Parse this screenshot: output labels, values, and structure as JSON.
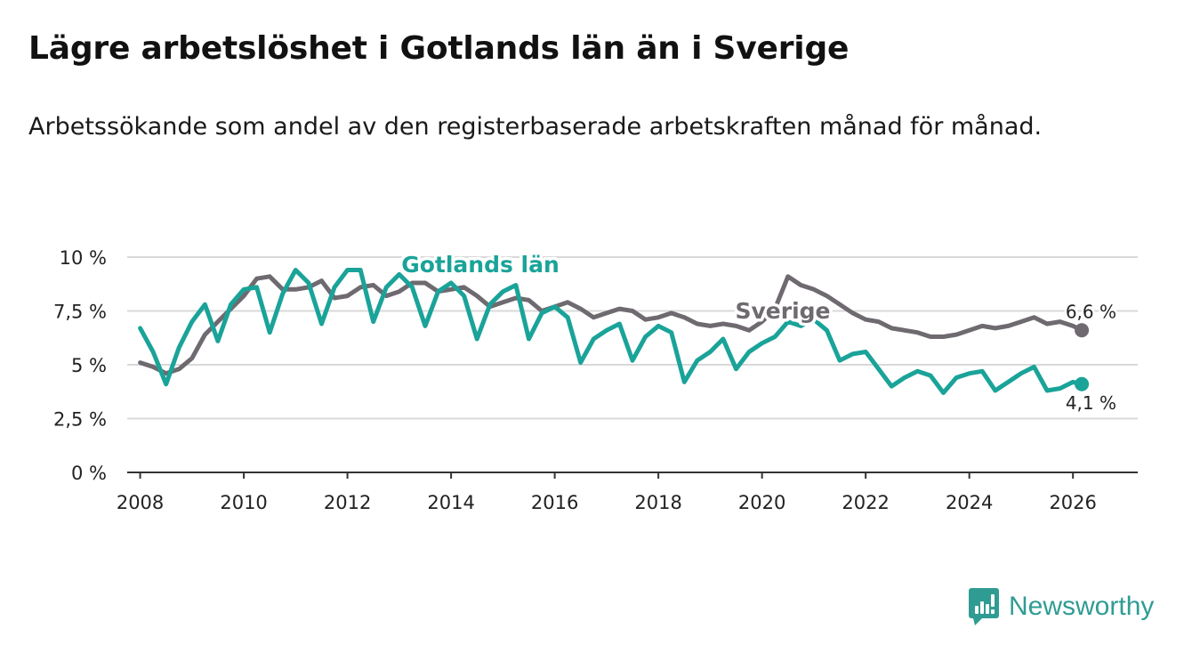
{
  "header": {
    "title": "Lägre arbetslöshet i Gotlands län än i Sverige",
    "subtitle": "Arbetssökande som andel av den registerbaserade arbetskraften månad för månad."
  },
  "brand": {
    "name": "Newsworthy",
    "icon": "newsworthy-chart-icon"
  },
  "colors": {
    "gotland": "#1aa399",
    "sverige": "#6e6a70",
    "grid": "#d9d9d9",
    "brand": "#2f9c93"
  },
  "chart_data": {
    "type": "line",
    "title": "Lägre arbetslöshet i Gotlands län än i Sverige",
    "xlabel": "",
    "ylabel": "",
    "xlim": [
      2007.75,
      2027.25
    ],
    "ylim": [
      0,
      10
    ],
    "y_ticks": [
      {
        "value": 0,
        "label": "0 %"
      },
      {
        "value": 2.5,
        "label": "2,5 %"
      },
      {
        "value": 5,
        "label": "5 %"
      },
      {
        "value": 7.5,
        "label": "7,5 %"
      },
      {
        "value": 10,
        "label": "10 %"
      }
    ],
    "x_ticks": [
      {
        "value": 2008,
        "label": "2008"
      },
      {
        "value": 2010,
        "label": "2010"
      },
      {
        "value": 2012,
        "label": "2012"
      },
      {
        "value": 2014,
        "label": "2014"
      },
      {
        "value": 2016,
        "label": "2016"
      },
      {
        "value": 2018,
        "label": "2018"
      },
      {
        "value": 2020,
        "label": "2020"
      },
      {
        "value": 2022,
        "label": "2022"
      },
      {
        "value": 2024,
        "label": "2024"
      },
      {
        "value": 2026,
        "label": "2026"
      }
    ],
    "grid": true,
    "series": [
      {
        "name": "Sverige",
        "label": "Sverige",
        "last_value_label": "6,6 %",
        "points": [
          [
            2008.0,
            5.1
          ],
          [
            2008.25,
            4.9
          ],
          [
            2008.5,
            4.6
          ],
          [
            2008.75,
            4.8
          ],
          [
            2009.0,
            5.3
          ],
          [
            2009.25,
            6.4
          ],
          [
            2009.5,
            7.0
          ],
          [
            2009.75,
            7.6
          ],
          [
            2010.0,
            8.2
          ],
          [
            2010.25,
            9.0
          ],
          [
            2010.5,
            9.1
          ],
          [
            2010.75,
            8.5
          ],
          [
            2011.0,
            8.5
          ],
          [
            2011.25,
            8.6
          ],
          [
            2011.5,
            8.9
          ],
          [
            2011.75,
            8.1
          ],
          [
            2012.0,
            8.2
          ],
          [
            2012.25,
            8.6
          ],
          [
            2012.5,
            8.7
          ],
          [
            2012.75,
            8.2
          ],
          [
            2013.0,
            8.4
          ],
          [
            2013.25,
            8.8
          ],
          [
            2013.5,
            8.8
          ],
          [
            2013.75,
            8.4
          ],
          [
            2014.0,
            8.5
          ],
          [
            2014.25,
            8.6
          ],
          [
            2014.5,
            8.2
          ],
          [
            2014.75,
            7.7
          ],
          [
            2015.0,
            7.9
          ],
          [
            2015.25,
            8.1
          ],
          [
            2015.5,
            8.0
          ],
          [
            2015.75,
            7.5
          ],
          [
            2016.0,
            7.7
          ],
          [
            2016.25,
            7.9
          ],
          [
            2016.5,
            7.6
          ],
          [
            2016.75,
            7.2
          ],
          [
            2017.0,
            7.4
          ],
          [
            2017.25,
            7.6
          ],
          [
            2017.5,
            7.5
          ],
          [
            2017.75,
            7.1
          ],
          [
            2018.0,
            7.2
          ],
          [
            2018.25,
            7.4
          ],
          [
            2018.5,
            7.2
          ],
          [
            2018.75,
            6.9
          ],
          [
            2019.0,
            6.8
          ],
          [
            2019.25,
            6.9
          ],
          [
            2019.5,
            6.8
          ],
          [
            2019.75,
            6.6
          ],
          [
            2020.0,
            7.0
          ],
          [
            2020.25,
            7.6
          ],
          [
            2020.5,
            9.1
          ],
          [
            2020.75,
            8.7
          ],
          [
            2021.0,
            8.5
          ],
          [
            2021.25,
            8.2
          ],
          [
            2021.5,
            7.8
          ],
          [
            2021.75,
            7.4
          ],
          [
            2022.0,
            7.1
          ],
          [
            2022.25,
            7.0
          ],
          [
            2022.5,
            6.7
          ],
          [
            2022.75,
            6.6
          ],
          [
            2023.0,
            6.5
          ],
          [
            2023.25,
            6.3
          ],
          [
            2023.5,
            6.3
          ],
          [
            2023.75,
            6.4
          ],
          [
            2024.0,
            6.6
          ],
          [
            2024.25,
            6.8
          ],
          [
            2024.5,
            6.7
          ],
          [
            2024.75,
            6.8
          ],
          [
            2025.0,
            7.0
          ],
          [
            2025.25,
            7.2
          ],
          [
            2025.5,
            6.9
          ],
          [
            2025.75,
            7.0
          ],
          [
            2026.0,
            6.8
          ],
          [
            2026.17,
            6.6
          ]
        ]
      },
      {
        "name": "Gotlands län",
        "label": "Gotlands län",
        "last_value_label": "4,1 %",
        "points": [
          [
            2008.0,
            6.7
          ],
          [
            2008.25,
            5.6
          ],
          [
            2008.5,
            4.1
          ],
          [
            2008.75,
            5.8
          ],
          [
            2009.0,
            7.0
          ],
          [
            2009.25,
            7.8
          ],
          [
            2009.5,
            6.1
          ],
          [
            2009.75,
            7.8
          ],
          [
            2010.0,
            8.5
          ],
          [
            2010.25,
            8.6
          ],
          [
            2010.5,
            6.5
          ],
          [
            2010.75,
            8.3
          ],
          [
            2011.0,
            9.4
          ],
          [
            2011.25,
            8.8
          ],
          [
            2011.5,
            6.9
          ],
          [
            2011.75,
            8.6
          ],
          [
            2012.0,
            9.4
          ],
          [
            2012.25,
            9.4
          ],
          [
            2012.5,
            7.0
          ],
          [
            2012.75,
            8.6
          ],
          [
            2013.0,
            9.2
          ],
          [
            2013.25,
            8.6
          ],
          [
            2013.5,
            6.8
          ],
          [
            2013.75,
            8.4
          ],
          [
            2014.0,
            8.8
          ],
          [
            2014.25,
            8.2
          ],
          [
            2014.5,
            6.2
          ],
          [
            2014.75,
            7.8
          ],
          [
            2015.0,
            8.4
          ],
          [
            2015.25,
            8.7
          ],
          [
            2015.5,
            6.2
          ],
          [
            2015.75,
            7.4
          ],
          [
            2016.0,
            7.7
          ],
          [
            2016.25,
            7.2
          ],
          [
            2016.5,
            5.1
          ],
          [
            2016.75,
            6.2
          ],
          [
            2017.0,
            6.6
          ],
          [
            2017.25,
            6.9
          ],
          [
            2017.5,
            5.2
          ],
          [
            2017.75,
            6.3
          ],
          [
            2018.0,
            6.8
          ],
          [
            2018.25,
            6.5
          ],
          [
            2018.5,
            4.2
          ],
          [
            2018.75,
            5.2
          ],
          [
            2019.0,
            5.6
          ],
          [
            2019.25,
            6.2
          ],
          [
            2019.5,
            4.8
          ],
          [
            2019.75,
            5.6
          ],
          [
            2020.0,
            6.0
          ],
          [
            2020.25,
            6.3
          ],
          [
            2020.5,
            7.0
          ],
          [
            2020.75,
            6.8
          ],
          [
            2021.0,
            7.1
          ],
          [
            2021.25,
            6.6
          ],
          [
            2021.5,
            5.2
          ],
          [
            2021.75,
            5.5
          ],
          [
            2022.0,
            5.6
          ],
          [
            2022.25,
            4.8
          ],
          [
            2022.5,
            4.0
          ],
          [
            2022.75,
            4.4
          ],
          [
            2023.0,
            4.7
          ],
          [
            2023.25,
            4.5
          ],
          [
            2023.5,
            3.7
          ],
          [
            2023.75,
            4.4
          ],
          [
            2024.0,
            4.6
          ],
          [
            2024.25,
            4.7
          ],
          [
            2024.5,
            3.8
          ],
          [
            2024.75,
            4.2
          ],
          [
            2025.0,
            4.6
          ],
          [
            2025.25,
            4.9
          ],
          [
            2025.5,
            3.8
          ],
          [
            2025.75,
            3.9
          ],
          [
            2026.0,
            4.2
          ],
          [
            2026.17,
            4.1
          ]
        ]
      }
    ]
  }
}
